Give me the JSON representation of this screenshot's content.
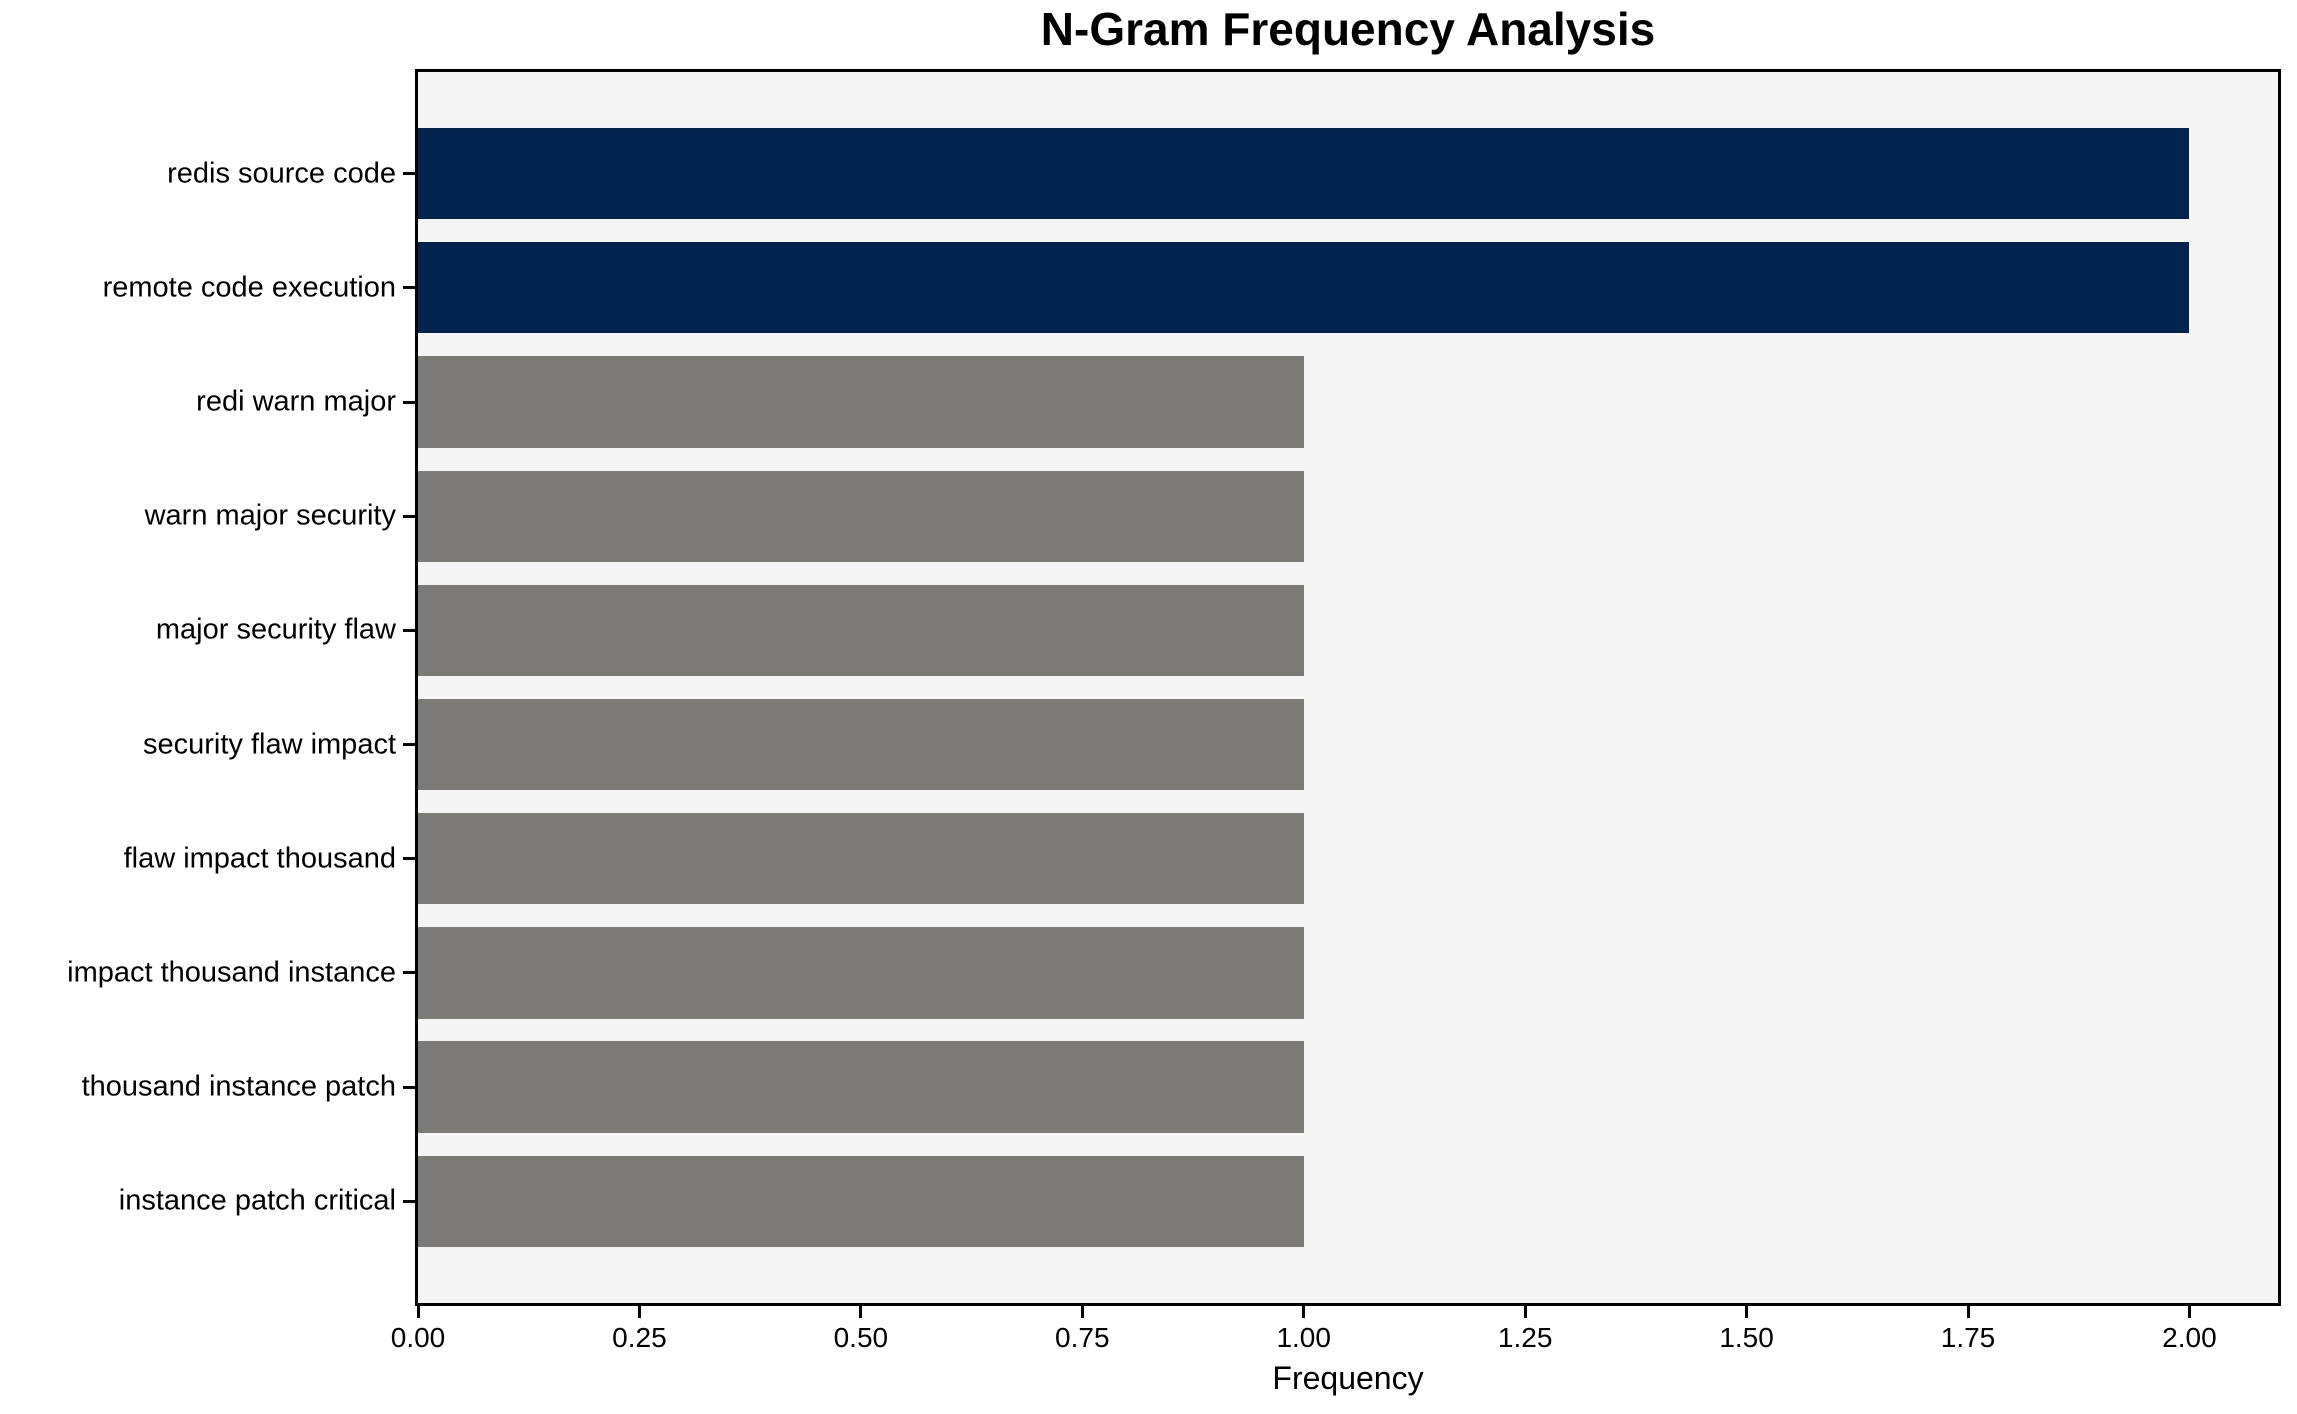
{
  "chart_data": {
    "type": "bar",
    "orientation": "horizontal",
    "title": "N-Gram Frequency Analysis",
    "xlabel": "Frequency",
    "ylabel": "",
    "categories": [
      "redis source code",
      "remote code execution",
      "redi warn major",
      "warn major security",
      "major security flaw",
      "security flaw impact",
      "flaw impact thousand",
      "impact thousand instance",
      "thousand instance patch",
      "instance patch critical"
    ],
    "values": [
      2,
      2,
      1,
      1,
      1,
      1,
      1,
      1,
      1,
      1
    ],
    "bar_colors": [
      "#02234d",
      "#02234d",
      "#7b7a77",
      "#7b7a77",
      "#7b7a77",
      "#7b7a77",
      "#7b7a77",
      "#7b7a77",
      "#7b7a77",
      "#7b7a77"
    ],
    "xlim": [
      0,
      2.1
    ],
    "xticks": [
      {
        "value": 0.0,
        "label": "0.00"
      },
      {
        "value": 0.25,
        "label": "0.25"
      },
      {
        "value": 0.5,
        "label": "0.50"
      },
      {
        "value": 0.75,
        "label": "0.75"
      },
      {
        "value": 1.0,
        "label": "1.00"
      },
      {
        "value": 1.25,
        "label": "1.25"
      },
      {
        "value": 1.5,
        "label": "1.50"
      },
      {
        "value": 1.75,
        "label": "1.75"
      },
      {
        "value": 2.0,
        "label": "2.00"
      }
    ],
    "grid": false,
    "legend": null,
    "plot_background": "#f5f5f5",
    "accent_color_high": "#02234d",
    "accent_color_low": "#7b7a77"
  }
}
